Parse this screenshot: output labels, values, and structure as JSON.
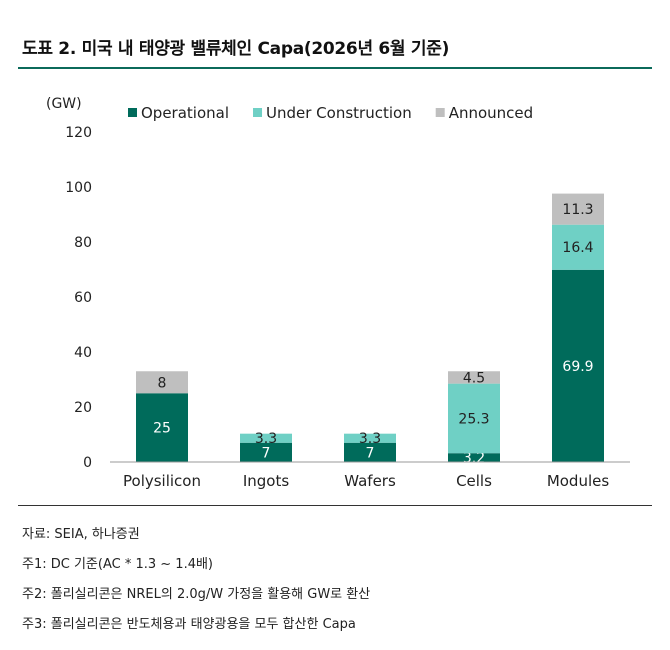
{
  "title": "도표 2. 미국 내 태양광 밸류체인 Capa(2026년 6월 기준)",
  "chart_data": {
    "type": "bar",
    "stacked": true,
    "unit_label": "(GW)",
    "categories": [
      "Polysilicon",
      "Ingots",
      "Wafers",
      "Cells",
      "Modules"
    ],
    "series": [
      {
        "name": "Operational",
        "color": "#006b5b",
        "values": [
          25,
          7,
          7,
          3.2,
          69.9
        ],
        "labels": [
          "25",
          "7",
          "7",
          "3.2",
          "69.9"
        ]
      },
      {
        "name": "Under Construction",
        "color": "#6fd0c5",
        "values": [
          0,
          3.3,
          3.3,
          25.3,
          16.4
        ],
        "labels": [
          "",
          "3.3",
          "3.3",
          "25.3",
          "16.4"
        ]
      },
      {
        "name": "Announced",
        "color": "#bfbfbf",
        "values": [
          8,
          0,
          0,
          4.5,
          11.3
        ],
        "labels": [
          "8",
          "",
          "",
          "4.5",
          "11.3"
        ]
      }
    ],
    "ylim": [
      0,
      120
    ],
    "yticks": [
      "0",
      "20",
      "40",
      "60",
      "80",
      "100",
      "120"
    ],
    "legend_position": "top",
    "grid": false
  },
  "footnotes": [
    "자료: SEIA, 하나증권",
    "주1: DC 기준(AC * 1.3 ~ 1.4배)",
    "주2: 폴리실리콘은 NREL의 2.0g/W 가정을 활용해 GW로 환산",
    "주3: 폴리실리콘은 반도체용과 태양광용을 모두 합산한 Capa"
  ]
}
